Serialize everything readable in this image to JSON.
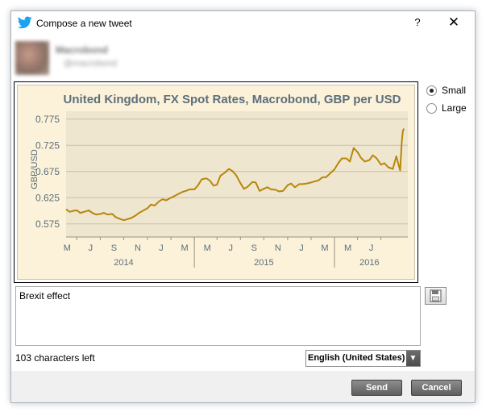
{
  "window": {
    "title": "Compose a new tweet",
    "help_label": "?",
    "close_label": "✕"
  },
  "user": {
    "name": "Macrobond",
    "handle": "@macrobond"
  },
  "chart_data": {
    "type": "line",
    "title": "United Kingdom, FX Spot Rates, Macrobond, GBP per USD",
    "ylabel": "GBP/USD",
    "xlabel": "",
    "ylim": [
      0.55,
      0.79
    ],
    "yticks": [
      0.575,
      0.625,
      0.675,
      0.725,
      0.775
    ],
    "ytick_labels": [
      "0.575",
      "0.625",
      "0.675",
      "0.725",
      "0.775"
    ],
    "month_ticks": [
      "M",
      "J",
      "S",
      "N",
      "J",
      "M",
      "M",
      "J",
      "S",
      "N",
      "J",
      "M",
      "M",
      "J"
    ],
    "year_labels": [
      "2014",
      "2015",
      "2016"
    ],
    "xlim": [
      "2014-02-01",
      "2016-07-10"
    ],
    "grid": true,
    "line_color": "#b8860b",
    "plot_background": "#efe6d0",
    "series": [
      {
        "x": [
          "2014-02-01",
          "2014-02-10",
          "2014-02-20",
          "2014-03-01",
          "2014-03-10",
          "2014-03-20",
          "2014-04-01",
          "2014-04-10",
          "2014-04-20",
          "2014-05-01",
          "2014-05-10",
          "2014-05-20",
          "2014-06-01",
          "2014-06-10",
          "2014-06-20",
          "2014-07-01",
          "2014-07-10",
          "2014-07-20",
          "2014-08-01",
          "2014-08-10",
          "2014-08-20",
          "2014-09-01",
          "2014-09-10",
          "2014-09-20",
          "2014-10-01",
          "2014-10-10",
          "2014-10-20",
          "2014-11-01",
          "2014-11-10",
          "2014-11-20",
          "2014-12-01",
          "2014-12-10",
          "2014-12-20",
          "2015-01-01",
          "2015-01-10",
          "2015-01-20",
          "2015-02-01",
          "2015-02-10",
          "2015-02-20",
          "2015-03-01",
          "2015-03-10",
          "2015-03-20",
          "2015-04-01",
          "2015-04-10",
          "2015-04-20",
          "2015-05-01",
          "2015-05-10",
          "2015-05-20",
          "2015-06-01",
          "2015-06-10",
          "2015-06-20",
          "2015-07-01",
          "2015-07-10",
          "2015-07-20",
          "2015-08-01",
          "2015-08-10",
          "2015-08-20",
          "2015-09-01",
          "2015-09-10",
          "2015-09-20",
          "2015-10-01",
          "2015-10-10",
          "2015-10-20",
          "2015-11-01",
          "2015-11-10",
          "2015-11-20",
          "2015-12-01",
          "2015-12-10",
          "2015-12-20",
          "2016-01-01",
          "2016-01-10",
          "2016-01-20",
          "2016-02-01",
          "2016-02-10",
          "2016-02-20",
          "2016-03-01",
          "2016-03-10",
          "2016-03-20",
          "2016-04-01",
          "2016-04-10",
          "2016-04-20",
          "2016-05-01",
          "2016-05-10",
          "2016-05-20",
          "2016-06-01",
          "2016-06-10",
          "2016-06-20",
          "2016-06-24",
          "2016-06-27",
          "2016-06-30"
        ],
        "y": [
          0.603,
          0.598,
          0.6,
          0.601,
          0.596,
          0.598,
          0.601,
          0.596,
          0.593,
          0.594,
          0.596,
          0.593,
          0.594,
          0.588,
          0.585,
          0.582,
          0.584,
          0.586,
          0.591,
          0.596,
          0.6,
          0.605,
          0.612,
          0.61,
          0.618,
          0.622,
          0.62,
          0.625,
          0.628,
          0.632,
          0.636,
          0.638,
          0.641,
          0.641,
          0.648,
          0.66,
          0.662,
          0.658,
          0.648,
          0.65,
          0.667,
          0.672,
          0.68,
          0.676,
          0.668,
          0.653,
          0.642,
          0.646,
          0.655,
          0.654,
          0.638,
          0.642,
          0.645,
          0.641,
          0.64,
          0.637,
          0.638,
          0.649,
          0.652,
          0.645,
          0.651,
          0.651,
          0.652,
          0.654,
          0.656,
          0.658,
          0.664,
          0.664,
          0.671,
          0.679,
          0.69,
          0.7,
          0.7,
          0.694,
          0.72,
          0.712,
          0.701,
          0.694,
          0.697,
          0.706,
          0.7,
          0.688,
          0.691,
          0.683,
          0.68,
          0.704,
          0.677,
          0.73,
          0.752,
          0.757
        ]
      }
    ]
  },
  "size_options": [
    {
      "label": "Small",
      "checked": true
    },
    {
      "label": "Large",
      "checked": false
    }
  ],
  "compose": {
    "text": "Brexit effect",
    "chars_left": "103 characters left"
  },
  "language": {
    "selected": "English (United States)"
  },
  "buttons": {
    "send": "Send",
    "cancel": "Cancel"
  },
  "icons": {
    "app": "twitter-bird-icon",
    "save": "floppy-disk-icon",
    "dropdown": "chevron-down-icon"
  }
}
